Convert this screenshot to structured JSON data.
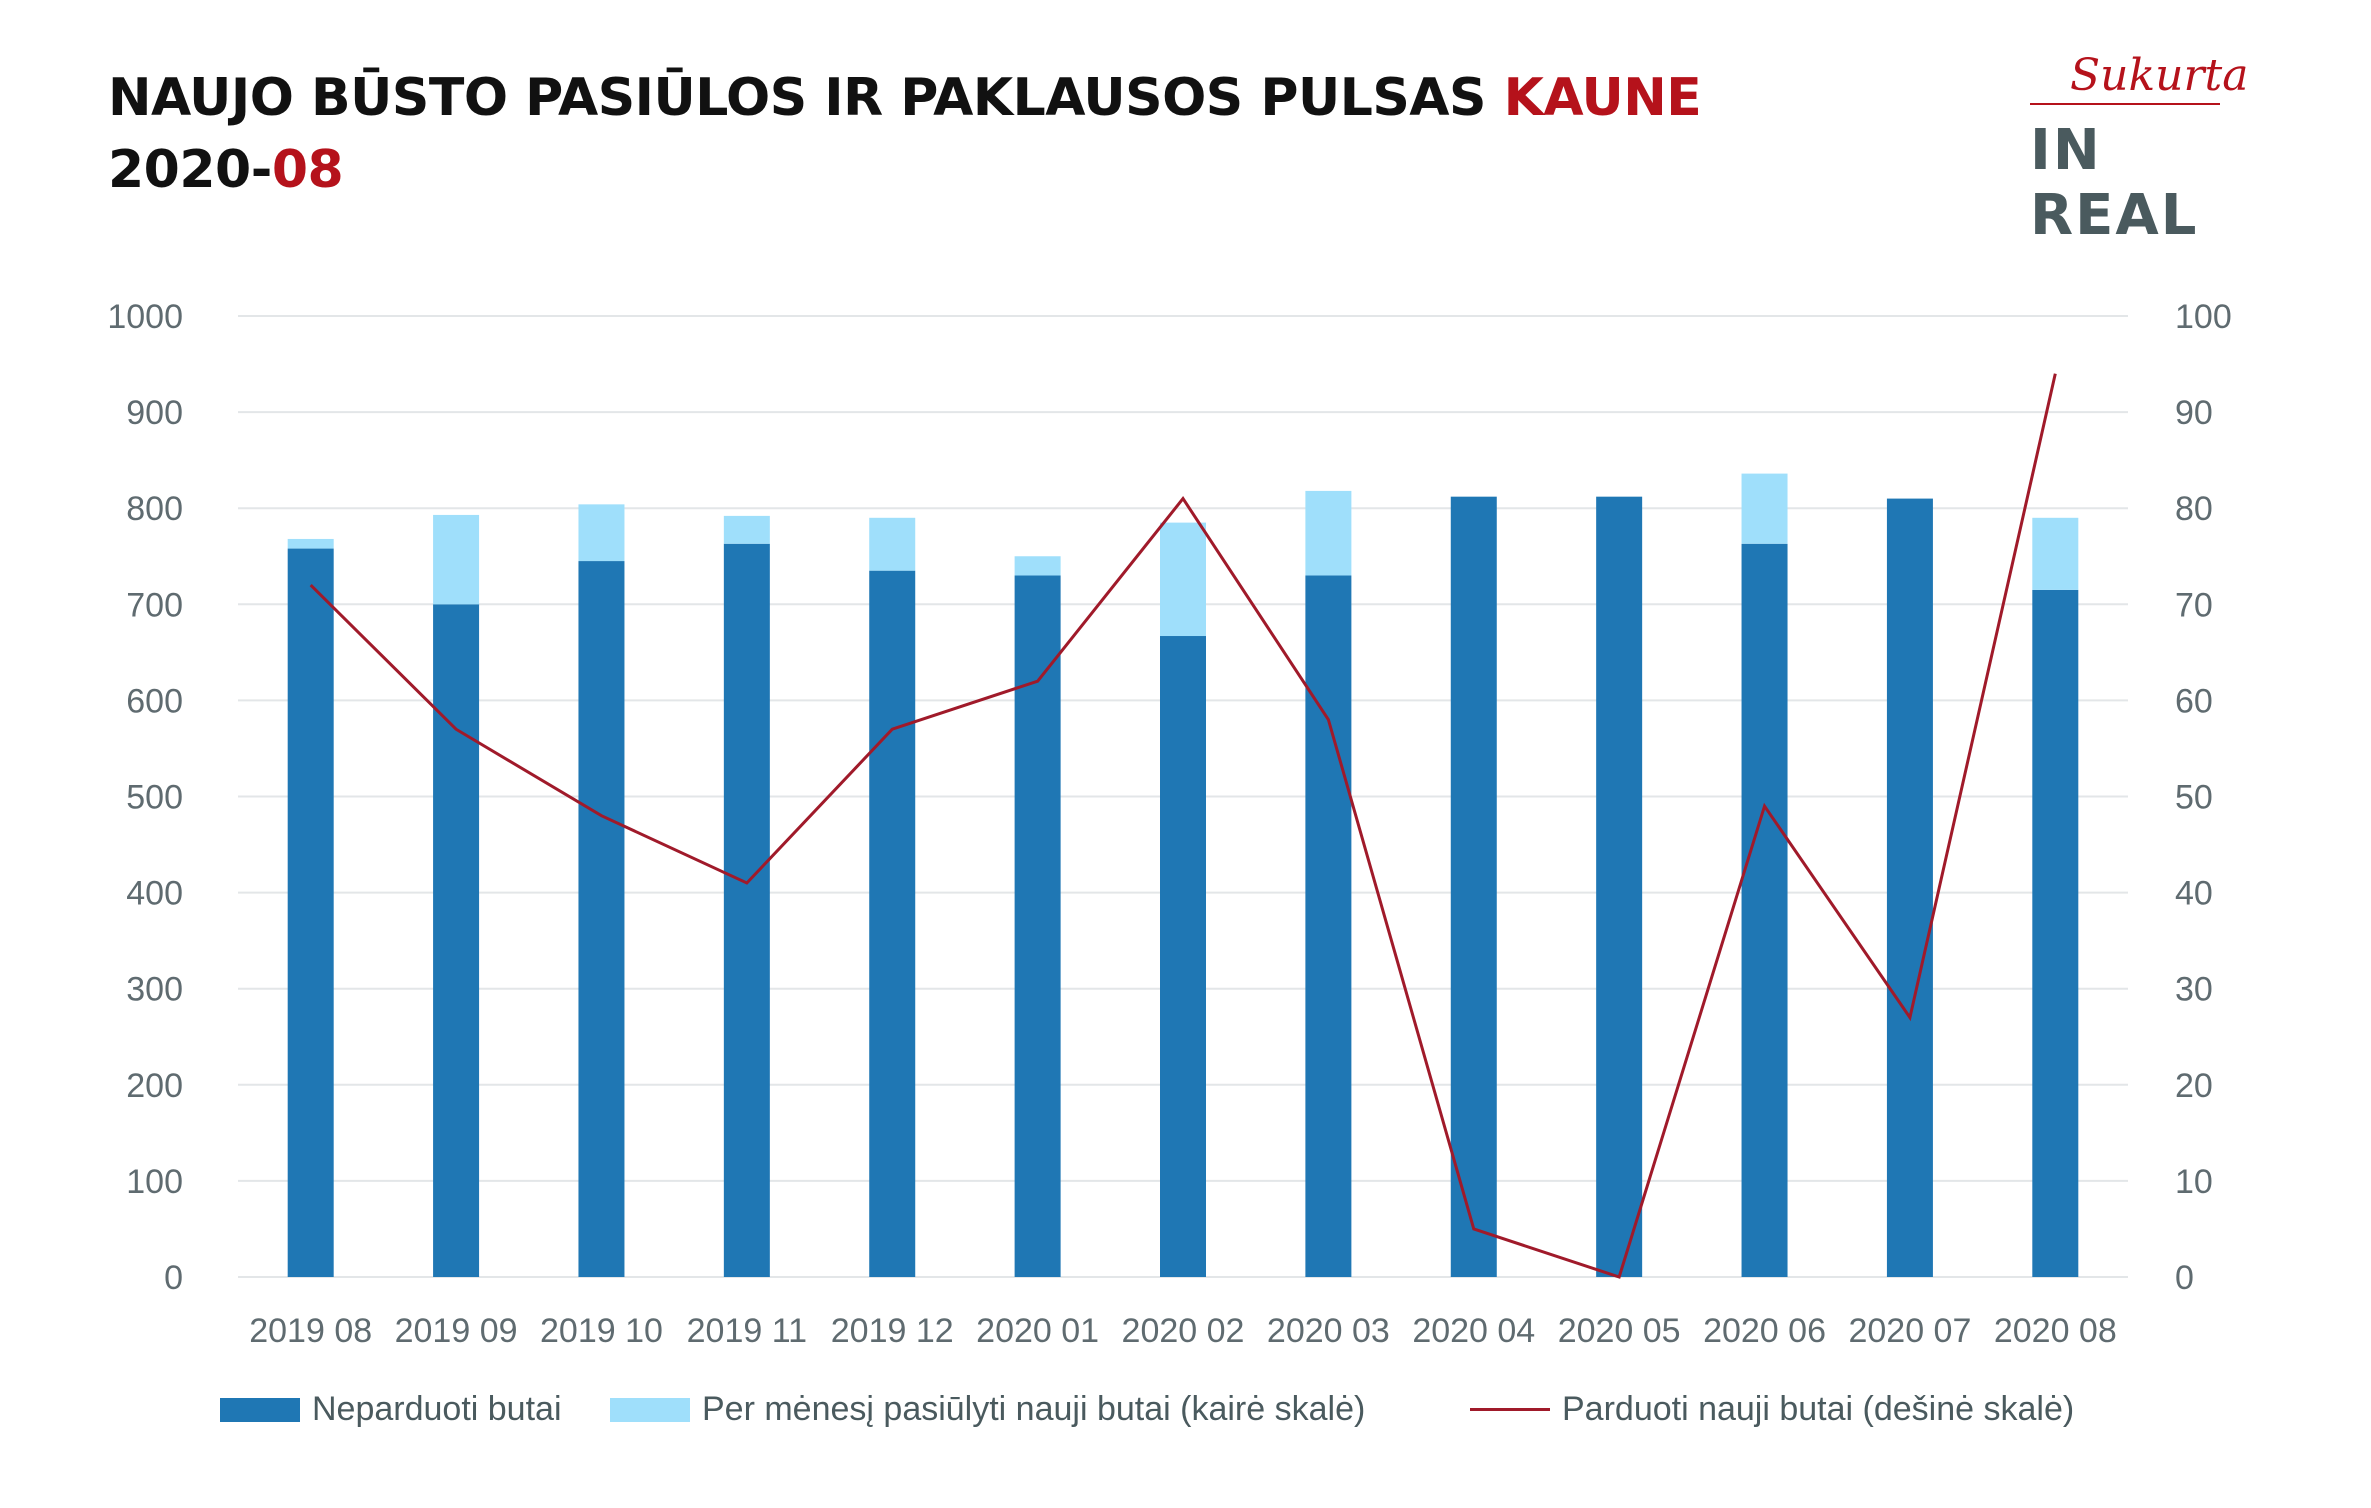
{
  "header": {
    "title_main": "NAUJO BŪSTO PASIŪLOS IR PAKLAUSOS PULSAS",
    "title_city": "KAUNE",
    "subtitle_year": "2020-",
    "subtitle_month": "08"
  },
  "logo": {
    "script": "Sukurta",
    "brand": "IN REAL"
  },
  "colors": {
    "unsold": "#1f77b4",
    "offered": "#9fdffb",
    "sold": "#a01a2a",
    "accent": "#b5121b"
  },
  "chart_data": {
    "type": "bar",
    "stacked": true,
    "categories": [
      "2019 08",
      "2019 09",
      "2019 10",
      "2019 11",
      "2019 12",
      "2020 01",
      "2020 02",
      "2020 03",
      "2020 04",
      "2020 05",
      "2020 06",
      "2020 07",
      "2020 08"
    ],
    "series": [
      {
        "name": "Neparduoti butai",
        "type": "bar",
        "axis": "left",
        "values": [
          758,
          700,
          745,
          763,
          735,
          730,
          667,
          730,
          812,
          812,
          763,
          810,
          715
        ]
      },
      {
        "name": "Per mėnesį pasiūlyti nauji butai (kairė skalė)",
        "type": "bar",
        "axis": "left",
        "values": [
          10,
          93,
          59,
          29,
          55,
          20,
          118,
          88,
          0,
          0,
          73,
          0,
          75
        ]
      },
      {
        "name": "Parduoti nauji butai (dešinė skalė)",
        "type": "line",
        "axis": "right",
        "values": [
          72,
          57,
          48,
          41,
          57,
          62,
          81,
          58,
          5,
          0,
          49,
          27,
          94
        ]
      }
    ],
    "y_left": {
      "min": 0,
      "max": 1000,
      "ticks": [
        "0",
        "100",
        "200",
        "300",
        "400",
        "500",
        "600",
        "700",
        "800",
        "900",
        "1000"
      ]
    },
    "y_right": {
      "min": 0,
      "max": 100,
      "ticks": [
        "0",
        "10",
        "20",
        "30",
        "40",
        "50",
        "60",
        "70",
        "80",
        "90",
        "100"
      ]
    },
    "grid": true,
    "legend_position": "bottom"
  }
}
